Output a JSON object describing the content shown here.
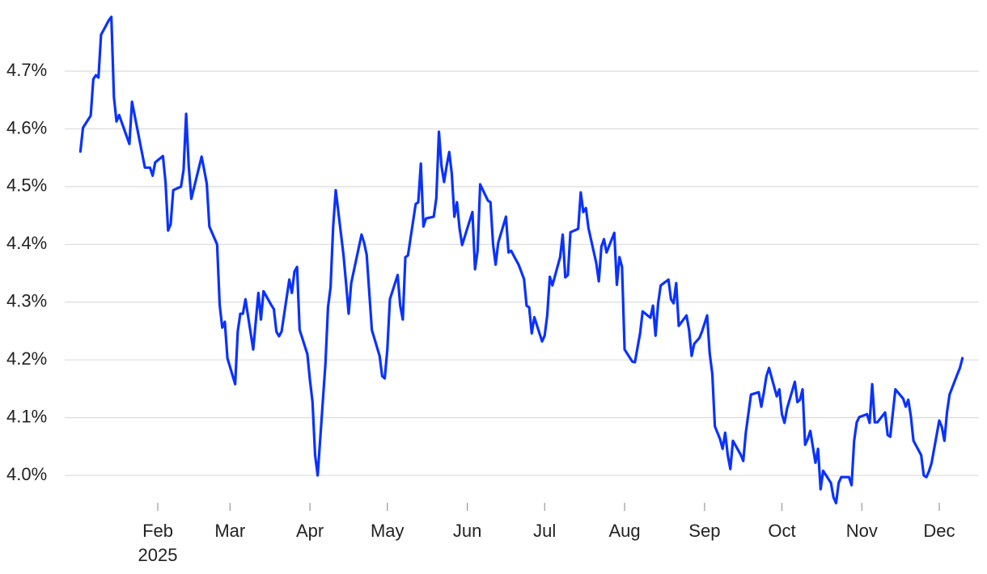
{
  "chart_data": {
    "type": "line",
    "x": [
      1,
      2,
      5,
      6,
      7,
      8,
      9,
      12,
      13,
      14,
      15,
      16,
      20,
      21,
      26,
      28,
      29,
      30,
      33,
      34,
      35,
      36,
      37,
      40,
      41,
      42,
      43,
      44,
      48,
      49,
      50,
      51,
      54,
      55,
      56,
      57,
      58,
      61,
      62,
      63,
      64,
      65,
      68,
      70,
      71,
      72,
      75,
      76,
      77,
      78,
      79,
      82,
      83,
      84,
      85,
      86,
      89,
      90,
      91,
      92,
      93,
      96,
      97,
      98,
      99,
      100,
      103,
      104,
      105,
      106,
      110,
      111,
      112,
      114,
      117,
      118,
      119,
      120,
      121,
      124,
      125,
      126,
      127,
      128,
      131,
      132,
      133,
      134,
      135,
      138,
      139,
      140,
      141,
      142,
      143,
      144,
      145,
      146,
      147,
      148,
      149,
      153,
      154,
      155,
      156,
      159,
      160,
      161,
      162,
      163,
      166,
      167,
      168,
      171,
      173,
      174,
      175,
      176,
      177,
      180,
      181,
      182,
      183,
      184,
      187,
      188,
      189,
      190,
      191,
      194,
      195,
      196,
      197,
      198,
      201,
      202,
      203,
      204,
      205,
      208,
      209,
      210,
      211,
      212,
      215,
      216,
      218,
      219,
      222,
      223,
      224,
      225,
      226,
      229,
      230,
      231,
      232,
      233,
      236,
      237,
      238,
      239,
      241,
      242,
      244,
      245,
      246,
      247,
      249,
      250,
      251,
      252,
      253,
      254,
      257,
      258,
      259,
      261,
      264,
      265,
      266,
      267,
      268,
      271,
      272,
      273,
      274,
      275,
      278,
      279,
      280,
      281,
      282,
      283,
      284,
      286,
      287,
      288,
      289,
      292,
      293,
      294,
      295,
      296,
      299,
      300,
      301,
      302,
      303,
      306,
      307,
      308,
      309,
      310,
      313,
      314,
      315,
      317,
      320,
      321,
      322,
      323,
      324,
      327,
      328,
      329,
      330,
      331,
      334,
      335,
      336,
      337,
      338,
      341,
      342,
      343
    ],
    "series": [
      {
        "color": "#0a32ff",
        "values": [
          4.561,
          4.602,
          4.623,
          4.686,
          4.693,
          4.689,
          4.763,
          4.788,
          4.794,
          4.655,
          4.613,
          4.624,
          4.574,
          4.647,
          4.533,
          4.533,
          4.519,
          4.542,
          4.553,
          4.508,
          4.424,
          4.435,
          4.494,
          4.5,
          4.529,
          4.626,
          4.536,
          4.479,
          4.552,
          4.529,
          4.505,
          4.431,
          4.4,
          4.295,
          4.256,
          4.266,
          4.203,
          4.158,
          4.249,
          4.28,
          4.28,
          4.305,
          4.218,
          4.316,
          4.27,
          4.319,
          4.295,
          4.288,
          4.249,
          4.241,
          4.249,
          4.339,
          4.316,
          4.353,
          4.361,
          4.252,
          4.21,
          4.165,
          4.127,
          4.035,
          4.0,
          4.193,
          4.291,
          4.326,
          4.431,
          4.494,
          4.382,
          4.333,
          4.28,
          4.333,
          4.417,
          4.403,
          4.382,
          4.252,
          4.207,
          4.172,
          4.168,
          4.218,
          4.305,
          4.347,
          4.294,
          4.27,
          4.378,
          4.381,
          4.47,
          4.473,
          4.54,
          4.431,
          4.445,
          4.448,
          4.48,
          4.595,
          4.536,
          4.508,
          4.536,
          4.56,
          4.522,
          4.448,
          4.473,
          4.428,
          4.399,
          4.456,
          4.357,
          4.389,
          4.504,
          4.476,
          4.473,
          4.4,
          4.365,
          4.403,
          4.448,
          4.386,
          4.389,
          4.364,
          4.34,
          4.294,
          4.291,
          4.246,
          4.274,
          4.232,
          4.242,
          4.277,
          4.344,
          4.329,
          4.378,
          4.417,
          4.343,
          4.347,
          4.421,
          4.427,
          4.49,
          4.456,
          4.463,
          4.428,
          4.368,
          4.336,
          4.396,
          4.409,
          4.386,
          4.42,
          4.33,
          4.378,
          4.361,
          4.218,
          4.197,
          4.196,
          4.246,
          4.284,
          4.273,
          4.294,
          4.242,
          4.298,
          4.329,
          4.339,
          4.305,
          4.298,
          4.333,
          4.259,
          4.277,
          4.252,
          4.207,
          4.228,
          4.238,
          4.249,
          4.277,
          4.211,
          4.176,
          4.085,
          4.063,
          4.046,
          4.074,
          4.035,
          4.011,
          4.06,
          4.036,
          4.025,
          4.074,
          4.14,
          4.144,
          4.119,
          4.144,
          4.172,
          4.186,
          4.137,
          4.149,
          4.106,
          4.091,
          4.116,
          4.162,
          4.127,
          4.131,
          4.149,
          4.053,
          4.063,
          4.077,
          4.022,
          4.046,
          3.976,
          4.008,
          3.987,
          3.962,
          3.952,
          3.987,
          3.997,
          3.997,
          3.983,
          4.06,
          4.092,
          4.101,
          4.106,
          4.091,
          4.158,
          4.092,
          4.092,
          4.109,
          4.07,
          4.067,
          4.149,
          4.133,
          4.119,
          4.131,
          4.102,
          4.06,
          4.035,
          4.0,
          3.997,
          4.007,
          4.021,
          4.095,
          4.084,
          4.06,
          4.109,
          4.14,
          4.175,
          4.186,
          4.203
        ]
      }
    ],
    "xlim": [
      0,
      349
    ],
    "xticks": [
      {
        "value": 31,
        "label": "Feb"
      },
      {
        "value": 59,
        "label": "Mar"
      },
      {
        "value": 90,
        "label": "Apr"
      },
      {
        "value": 120,
        "label": "May"
      },
      {
        "value": 151,
        "label": "Jun"
      },
      {
        "value": 181,
        "label": "Jul"
      },
      {
        "value": 212,
        "label": "Aug"
      },
      {
        "value": 243,
        "label": "Sep"
      },
      {
        "value": 273,
        "label": "Oct"
      },
      {
        "value": 304,
        "label": "Nov"
      },
      {
        "value": 334,
        "label": "Dec"
      }
    ],
    "x_year_label": "2025",
    "ylim": [
      3.94,
      4.8
    ],
    "yticks": [
      {
        "value": 4.0,
        "label": "4.0%"
      },
      {
        "value": 4.1,
        "label": "4.1%"
      },
      {
        "value": 4.2,
        "label": "4.2%"
      },
      {
        "value": 4.3,
        "label": "4.3%"
      },
      {
        "value": 4.4,
        "label": "4.4%"
      },
      {
        "value": 4.5,
        "label": "4.5%"
      },
      {
        "value": 4.6,
        "label": "4.6%"
      },
      {
        "value": 4.7,
        "label": "4.7%"
      }
    ],
    "grid": true
  }
}
